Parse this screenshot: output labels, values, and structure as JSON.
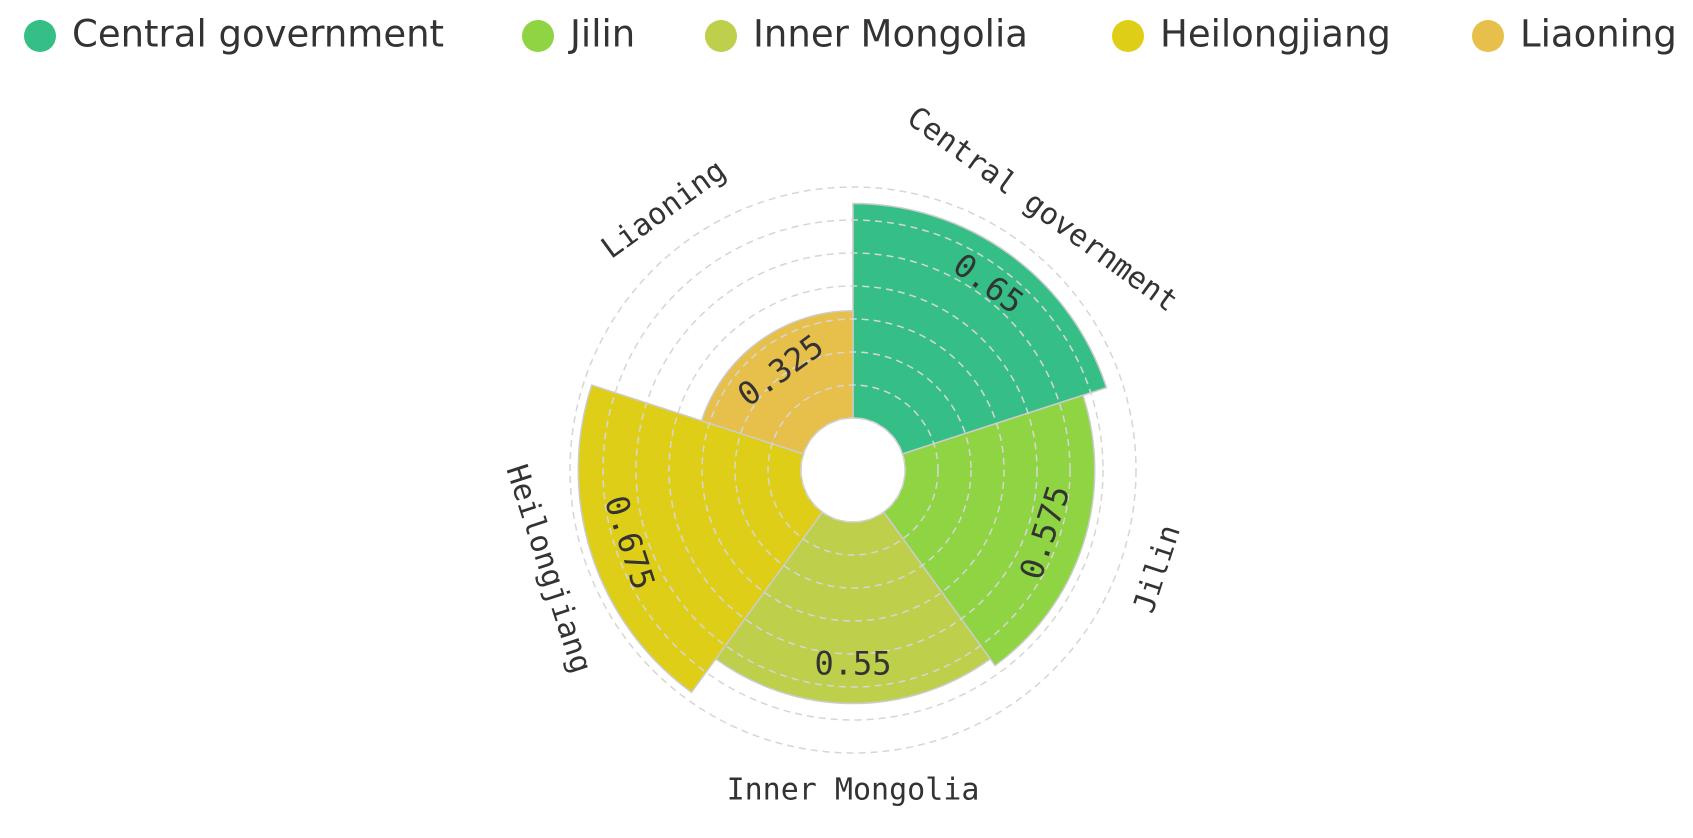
{
  "chart_data": {
    "type": "polar-bar",
    "categories": [
      "Central government",
      "Jilin",
      "Inner Mongolia",
      "Heilongjiang",
      "Liaoning"
    ],
    "values": [
      0.65,
      0.575,
      0.55,
      0.675,
      0.325
    ],
    "colors": [
      "#35bf87",
      "#8ed443",
      "#bdcf4b",
      "#dfce17",
      "#e7bf4b"
    ],
    "rlim": [
      0,
      0.7
    ],
    "rticks": [
      0,
      0.1,
      0.2,
      0.3,
      0.4,
      0.5,
      0.6,
      0.7
    ],
    "grid": true,
    "legend": "top"
  }
}
